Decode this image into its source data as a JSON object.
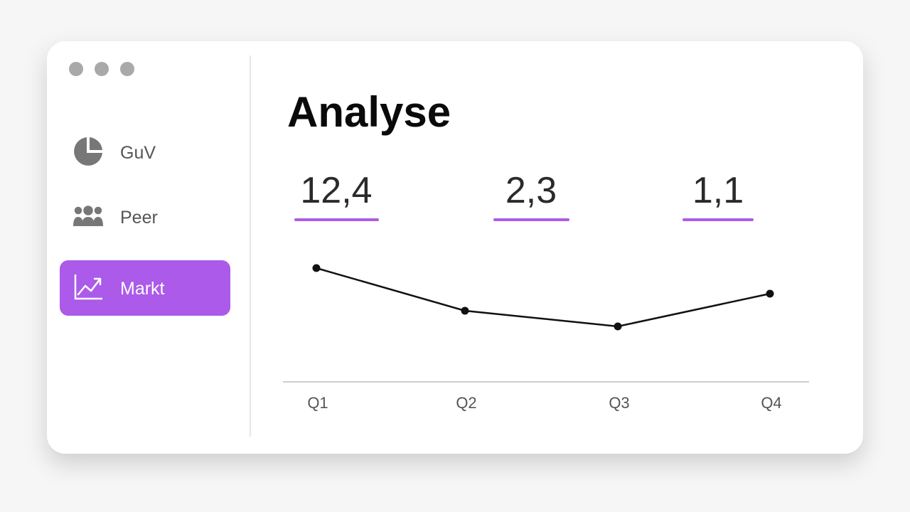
{
  "title": "Analyse",
  "nav": [
    {
      "label": "GuV",
      "icon": "pie"
    },
    {
      "label": "Peer",
      "icon": "people"
    },
    {
      "label": "Markt",
      "icon": "trend",
      "active": true
    }
  ],
  "metrics": [
    "12,4",
    "2,3",
    "1,1"
  ],
  "chart_data": {
    "type": "line",
    "categories": [
      "Q1",
      "Q2",
      "Q3",
      "Q4"
    ],
    "values": [
      80,
      50,
      39,
      62
    ],
    "ylim": [
      0,
      100
    ],
    "color": "#111111"
  }
}
